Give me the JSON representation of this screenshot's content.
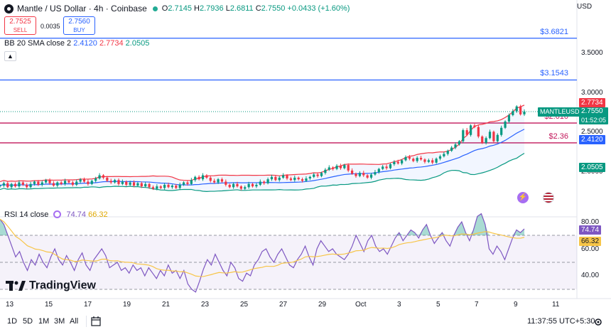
{
  "header": {
    "symbol_title": "Mantle / US Dollar · 4h · Coinbase",
    "open_label": "O",
    "open": "2.7145",
    "high_label": "H",
    "high": "2.7936",
    "low_label": "L",
    "low": "2.6811",
    "close_label": "C",
    "close": "2.7550",
    "change": "+0.0433 (+1.60%)"
  },
  "trade": {
    "sell_price": "2.7525",
    "sell_label": "SELL",
    "spread": "0.0035",
    "buy_price": "2.7560",
    "buy_label": "BUY"
  },
  "indicators": {
    "bb_label": "BB 20 SMA close 2",
    "bb_basis": "2.4120",
    "bb_upper": "2.7734",
    "bb_lower": "2.0505",
    "collapse_icon": "chevron-up-icon",
    "rsi_label": "RSI 14 close",
    "rsi_value": "74.74",
    "rsi_ma": "66.32"
  },
  "price_axis": {
    "currency": "USD",
    "ticks": [
      "3.5000",
      "3.0000",
      "2.5000",
      "2.0000"
    ]
  },
  "price_tags": {
    "bb_upper": "2.7734",
    "symbol": "MANTLEUSD",
    "last": "2.7550",
    "countdown": "01:52:05",
    "bb_basis": "2.4120",
    "bb_lower": "2.0505"
  },
  "levels": [
    {
      "label": "$3.6821",
      "price": 3.6821,
      "color": "#2962ff"
    },
    {
      "label": "$3.1543",
      "price": 3.1543,
      "color": "#2962ff"
    },
    {
      "label": "$2.610",
      "price": 2.61,
      "color": "#c2185b"
    },
    {
      "label": "$2.36",
      "price": 2.36,
      "color": "#c2185b"
    }
  ],
  "rsi_axis": {
    "ticks": [
      "80.00",
      "60.00",
      "40.00"
    ],
    "value_tag": "74.74",
    "ma_tag": "66.32"
  },
  "time_axis": {
    "labels": [
      "13",
      "15",
      "17",
      "19",
      "21",
      "23",
      "25",
      "27",
      "29",
      "Oct",
      "3",
      "5",
      "7",
      "9",
      "11"
    ]
  },
  "branding": {
    "name": "TradingView"
  },
  "footer": {
    "ranges": [
      "1D",
      "5D",
      "1M",
      "3M",
      "All"
    ],
    "calendar_icon": "calendar-icon",
    "time": "11:37:55 UTC+5:30"
  },
  "colors": {
    "up": "#089981",
    "down": "#f23645",
    "bb_upper": "#f23645",
    "bb_basis": "#2962ff",
    "bb_lower": "#089981",
    "rsi": "#7e57c2",
    "rsi_ma": "#f7c548"
  },
  "chart_data": {
    "type": "candlestick",
    "ylim": [
      1.75,
      3.75
    ],
    "closes": [
      1.82,
      1.85,
      1.8,
      1.84,
      1.81,
      1.86,
      1.83,
      1.8,
      1.84,
      1.87,
      1.83,
      1.86,
      1.89,
      1.85,
      1.82,
      1.86,
      1.84,
      1.88,
      1.86,
      1.83,
      1.87,
      1.9,
      1.87,
      1.84,
      1.88,
      1.91,
      1.95,
      1.92,
      1.88,
      1.86,
      1.89,
      1.84,
      1.87,
      1.83,
      1.86,
      1.82,
      1.85,
      1.81,
      1.84,
      1.8,
      1.78,
      1.81,
      1.79,
      1.83,
      1.8,
      1.82,
      1.79,
      1.83,
      1.86,
      1.84,
      1.89,
      1.93,
      1.9,
      1.95,
      1.92,
      1.88,
      1.86,
      1.9,
      1.87,
      1.83,
      1.8,
      1.84,
      1.81,
      1.78,
      1.8,
      1.84,
      1.81,
      1.83,
      1.87,
      1.85,
      1.9,
      1.93,
      1.89,
      1.92,
      1.95,
      1.91,
      1.89,
      1.92,
      1.9,
      1.88,
      1.91,
      1.93,
      1.96,
      1.94,
      1.98,
      2.02,
      2.05,
      2.03,
      2.07,
      2.04,
      2.08,
      2.01,
      1.97,
      1.94,
      1.98,
      1.95,
      1.92,
      1.96,
      1.99,
      2.03,
      2.06,
      2.04,
      2.09,
      2.12,
      2.1,
      2.14,
      2.18,
      2.16,
      2.13,
      2.17,
      2.15,
      2.12,
      2.14,
      2.11,
      2.16,
      2.19,
      2.22,
      2.26,
      2.3,
      2.34,
      2.38,
      2.52,
      2.46,
      2.58,
      2.56,
      2.44,
      2.36,
      2.42,
      2.5,
      2.38,
      2.46,
      2.55,
      2.63,
      2.71,
      2.76,
      2.82,
      2.72,
      2.755
    ],
    "rsi": [
      82,
      78,
      70,
      62,
      54,
      58,
      50,
      44,
      52,
      48,
      56,
      50,
      46,
      54,
      60,
      52,
      48,
      55,
      50,
      44,
      52,
      57,
      48,
      44,
      52,
      56,
      60,
      55,
      46,
      48,
      50,
      44,
      46,
      42,
      48,
      44,
      46,
      40,
      46,
      42,
      38,
      44,
      40,
      48,
      42,
      44,
      38,
      44,
      34,
      30,
      28,
      36,
      45,
      52,
      48,
      56,
      50,
      44,
      40,
      50,
      46,
      38,
      36,
      42,
      40,
      48,
      52,
      58,
      60,
      54,
      50,
      56,
      60,
      54,
      48,
      46,
      52,
      56,
      62,
      54,
      48,
      60,
      66,
      62,
      58,
      60,
      56,
      54,
      52,
      56,
      62,
      70,
      64,
      58,
      66,
      70,
      62,
      58,
      60,
      56,
      62,
      68,
      72,
      66,
      70,
      74,
      72,
      68,
      74,
      78,
      70,
      64,
      68,
      72,
      66,
      62,
      70,
      76,
      80,
      72,
      66,
      74,
      84,
      86,
      78,
      60,
      56,
      62,
      58,
      52,
      60,
      68,
      74,
      72,
      74.74
    ]
  }
}
